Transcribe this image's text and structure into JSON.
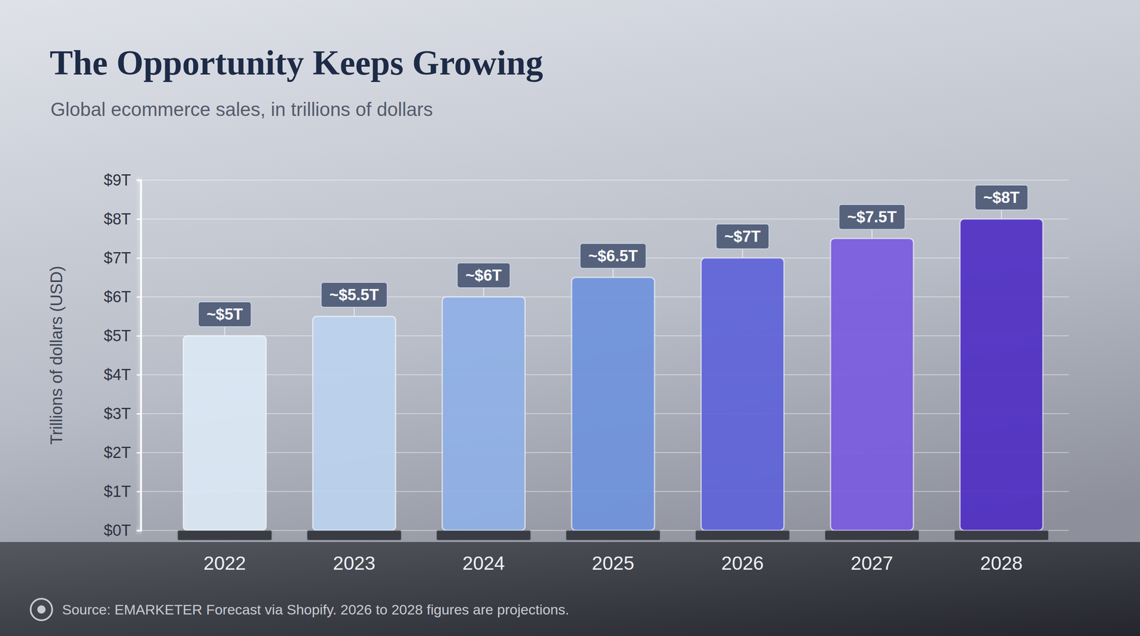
{
  "chart_data": {
    "type": "bar",
    "title": "The Opportunity Keeps Growing",
    "subtitle": "Global ecommerce sales, in trillions of dollars",
    "y_label": "Trillions of dollars (USD)",
    "categories": [
      "2022",
      "2023",
      "2024",
      "2025",
      "2026",
      "2027",
      "2028"
    ],
    "values": [
      5,
      5.5,
      6,
      6.5,
      7,
      7.5,
      8
    ],
    "value_labels": [
      "~$5T",
      "~$5.5T",
      "~$6T",
      "~$6.5T",
      "~$7T",
      "~$7.5T",
      "~$8T"
    ],
    "colors": [
      "#dce8f5",
      "#bcd2ef",
      "#8fb0e6",
      "#6f93dc",
      "#5d63d9",
      "#7a5ae0",
      "#4f2fc4"
    ],
    "ylim": [
      0,
      9
    ],
    "yticks": [
      {
        "value": 0,
        "label": "$0T"
      },
      {
        "value": 1,
        "label": "$1T"
      },
      {
        "value": 2,
        "label": "$2T"
      },
      {
        "value": 3,
        "label": "$3T"
      },
      {
        "value": 4,
        "label": "$4T"
      },
      {
        "value": 5,
        "label": "$5T"
      },
      {
        "value": 6,
        "label": "$6T"
      },
      {
        "value": 7,
        "label": "$7T"
      },
      {
        "value": 8,
        "label": "$8T"
      },
      {
        "value": 9,
        "label": "$9T"
      }
    ],
    "grid": true,
    "data_labels": true,
    "source": "Source: EMARKETER Forecast via Shopify. 2026 to 2028 figures are projections."
  }
}
